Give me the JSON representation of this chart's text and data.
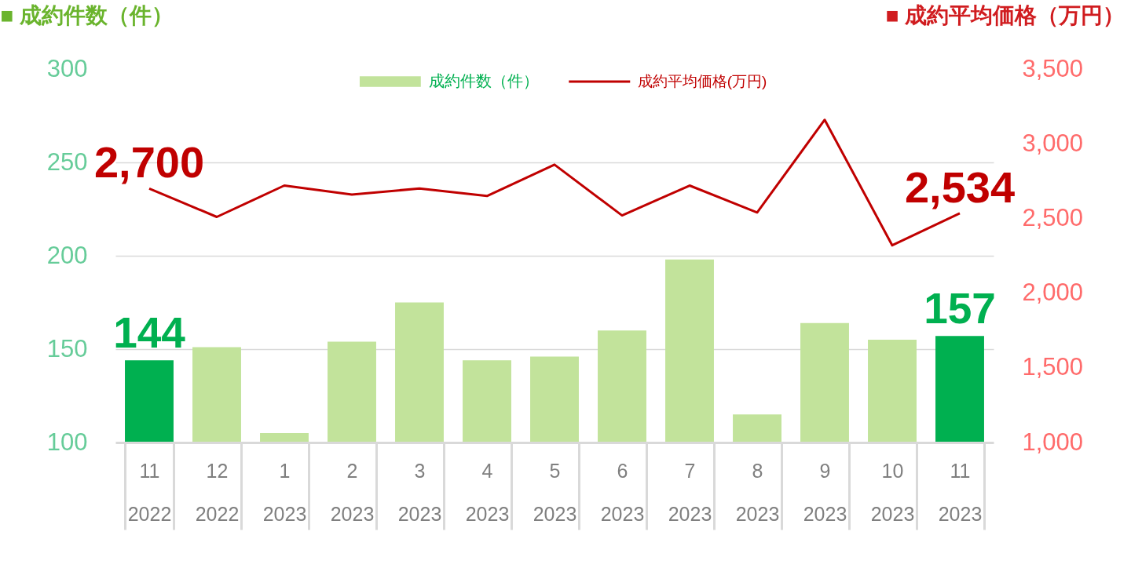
{
  "chart_data": {
    "type": "bar",
    "ylabel": "■ 成約件数（件）",
    "y2label": "■ 成約平均価格（万円）",
    "categories": [
      "11\n2022",
      "12\n2022",
      "1\n2023",
      "2\n2023",
      "3\n2023",
      "4\n2023",
      "5\n2023",
      "6\n2023",
      "7\n2023",
      "8\n2023",
      "9\n2023",
      "10\n2023",
      "11\n2023"
    ],
    "series": [
      {
        "name": "成約件数（件）",
        "color": "#c2e39b",
        "colors": [
          "#00b050",
          "#c2e39b",
          "#c2e39b",
          "#c2e39b",
          "#c2e39b",
          "#c2e39b",
          "#c2e39b",
          "#c2e39b",
          "#c2e39b",
          "#c2e39b",
          "#c2e39b",
          "#c2e39b",
          "#00b050"
        ],
        "values": [
          144,
          151,
          105,
          154,
          175,
          144,
          146,
          160,
          198,
          115,
          164,
          155,
          157
        ],
        "value_labels": [
          "144",
          null,
          null,
          null,
          null,
          null,
          null,
          null,
          null,
          null,
          null,
          null,
          "157"
        ]
      },
      {
        "name": "成約平均価格(万円)",
        "type": "line",
        "axis": "y2",
        "color": "#c00000",
        "values": [
          2700,
          2510,
          2720,
          2660,
          2700,
          2650,
          2860,
          2520,
          2720,
          2540,
          3160,
          2320,
          2534
        ],
        "value_labels": [
          "2,700",
          null,
          null,
          null,
          null,
          null,
          null,
          null,
          null,
          null,
          null,
          null,
          "2,534"
        ]
      }
    ],
    "ylim": [
      100,
      300
    ],
    "yticks": [
      100,
      150,
      200,
      250,
      300
    ],
    "y2lim": [
      1000,
      3500
    ],
    "y2ticks": [
      {
        "value": 1000,
        "label": "1,000"
      },
      {
        "value": 1500,
        "label": "1,500"
      },
      {
        "value": 2000,
        "label": "2,000"
      },
      {
        "value": 2500,
        "label": "2,500"
      },
      {
        "value": 3000,
        "label": "3,000"
      },
      {
        "value": 3500,
        "label": "3,500"
      }
    ],
    "grid": "y",
    "legend": "top"
  }
}
